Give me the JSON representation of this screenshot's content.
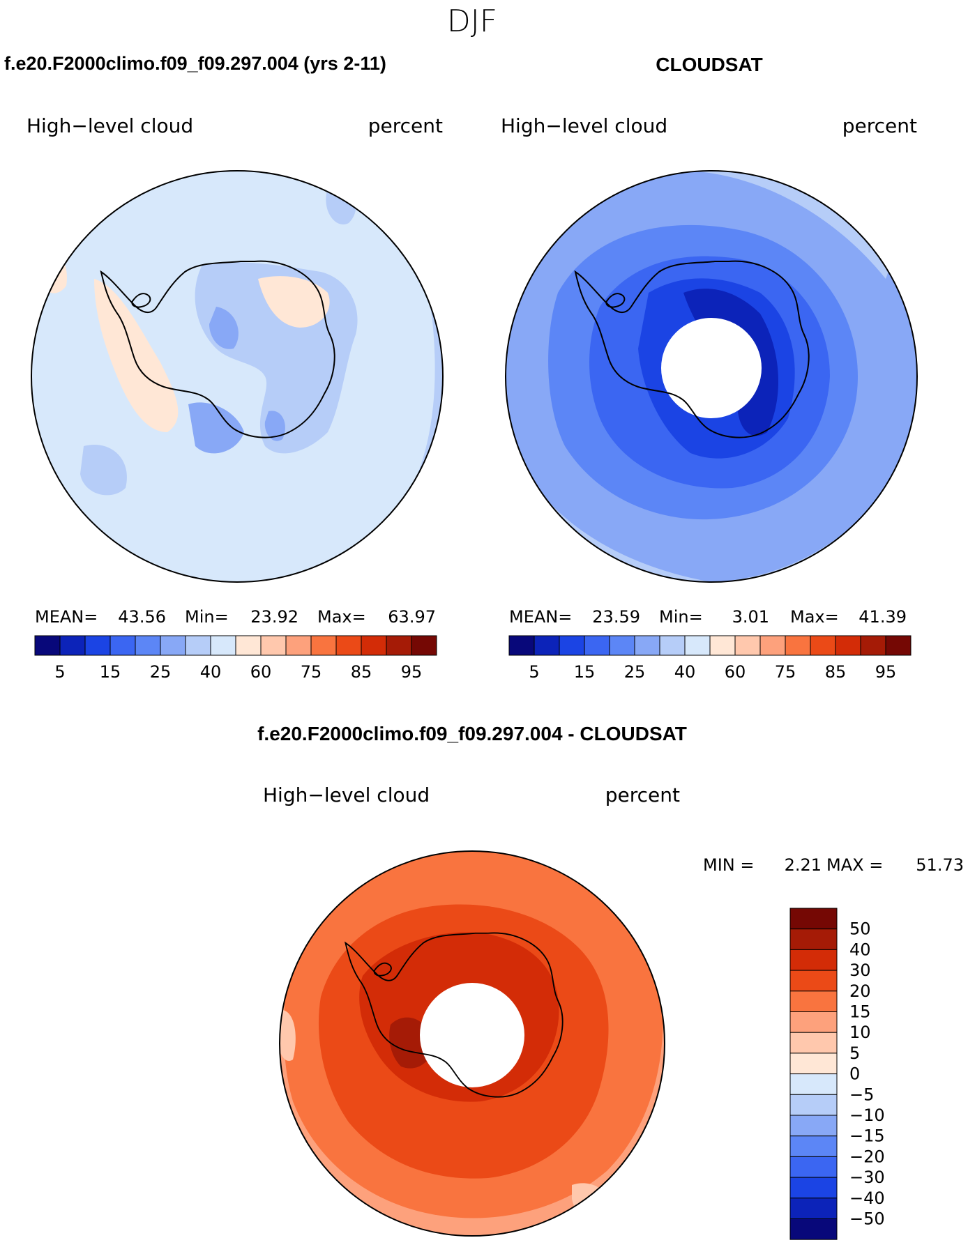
{
  "season": "DJF",
  "panels": {
    "model": {
      "title": "f.e20.F2000climo.f09_f09.297.004 (yrs 2-11)",
      "variable": "High−level cloud",
      "units": "percent",
      "stats": {
        "mean_label": "MEAN=",
        "mean": "43.56",
        "min_label": "Min=",
        "min": "23.92",
        "max_label": "Max=",
        "max": "63.97"
      }
    },
    "obs": {
      "title": "CLOUDSAT",
      "variable": "High−level cloud",
      "units": "percent",
      "stats": {
        "mean_label": "MEAN=",
        "mean": "23.59",
        "min_label": "Min=",
        "min": "3.01",
        "max_label": "Max=",
        "max": "41.39"
      }
    },
    "diff": {
      "title": "f.e20.F2000climo.f09_f09.297.004 - CLOUDSAT",
      "variable": "High−level cloud",
      "units": "percent",
      "stats": {
        "min_label": "MIN =",
        "min": "2.21",
        "max_label": "MAX =",
        "max": "51.73"
      }
    }
  },
  "chart_data": [
    {
      "type": "heatmap",
      "title": "f.e20.F2000climo.f09_f09.297.004 (yrs 2-11)",
      "projection": "south-polar-stereographic",
      "variable": "High-level cloud",
      "units": "percent",
      "mean": 43.56,
      "min": 23.92,
      "max": 63.97,
      "colorbar_levels": [
        5,
        10,
        15,
        20,
        25,
        30,
        40,
        50,
        60,
        70,
        75,
        80,
        85,
        90,
        95
      ],
      "colorbar_tick_labels": [
        "5",
        "15",
        "25",
        "40",
        "60",
        "75",
        "85",
        "95"
      ],
      "colorbar_colors": [
        "#08087a",
        "#0c23b9",
        "#1b44e4",
        "#3b66f2",
        "#5c86f6",
        "#88a8f6",
        "#b6cdf8",
        "#d7e8fb",
        "#ffe7d6",
        "#ffc8ad",
        "#fda17c",
        "#f9743f",
        "#eb4a17",
        "#d32c07",
        "#a51b06",
        "#750804"
      ],
      "colorbar_placement": "horizontal-below"
    },
    {
      "type": "heatmap",
      "title": "CLOUDSAT",
      "projection": "south-polar-stereographic",
      "variable": "High-level cloud",
      "units": "percent",
      "mean": 23.59,
      "min": 3.01,
      "max": 41.39,
      "colorbar_levels": [
        5,
        10,
        15,
        20,
        25,
        30,
        40,
        50,
        60,
        70,
        75,
        80,
        85,
        90,
        95
      ],
      "colorbar_tick_labels": [
        "5",
        "15",
        "25",
        "40",
        "60",
        "75",
        "85",
        "95"
      ],
      "colorbar_placement": "horizontal-below"
    },
    {
      "type": "heatmap",
      "title": "f.e20.F2000climo.f09_f09.297.004 - CLOUDSAT",
      "projection": "south-polar-stereographic",
      "variable": "High-level cloud",
      "units": "percent",
      "min": 2.21,
      "max": 51.73,
      "colorbar_levels": [
        50,
        40,
        30,
        20,
        15,
        10,
        5,
        0,
        -5,
        -10,
        -15,
        -20,
        -30,
        -40,
        -50
      ],
      "colorbar_tick_labels": [
        "50",
        "40",
        "30",
        "20",
        "15",
        "10",
        "5",
        "0",
        "−5",
        "−10",
        "−15",
        "−20",
        "−30",
        "−40",
        "−50"
      ],
      "colorbar_colors": [
        "#750804",
        "#a51b06",
        "#d32c07",
        "#eb4a17",
        "#f9743f",
        "#fda17c",
        "#ffc8ad",
        "#ffe7d6",
        "#d7e8fb",
        "#b6cdf8",
        "#88a8f6",
        "#5c86f6",
        "#3b66f2",
        "#1b44e4",
        "#0c23b9",
        "#08087a"
      ],
      "colorbar_placement": "vertical-right"
    }
  ]
}
